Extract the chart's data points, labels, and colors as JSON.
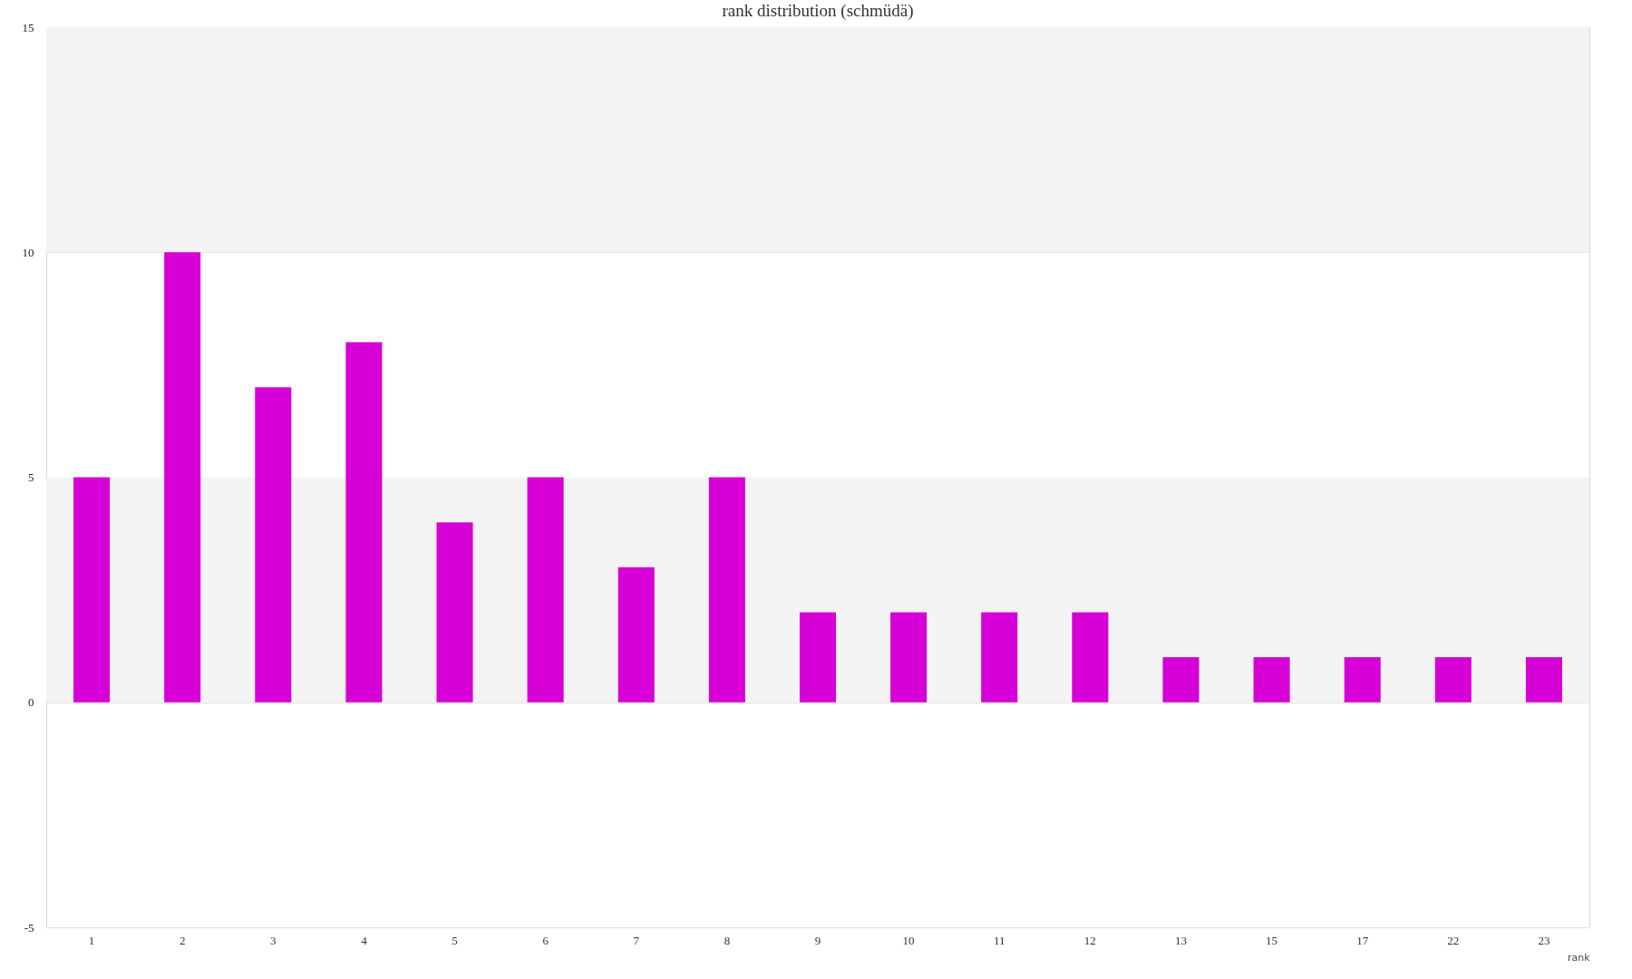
{
  "chart_data": {
    "type": "bar",
    "title": "rank distribution (schmüdä)",
    "xlabel": "rank",
    "categories": [
      "1",
      "2",
      "3",
      "4",
      "5",
      "6",
      "7",
      "8",
      "9",
      "10",
      "11",
      "12",
      "13",
      "15",
      "17",
      "22",
      "23"
    ],
    "values": [
      5,
      10,
      7,
      8,
      4,
      5,
      3,
      5,
      2,
      2,
      2,
      2,
      1,
      1,
      1,
      1,
      1
    ],
    "color": "#d600d6",
    "ylim": [
      -5,
      15
    ],
    "yticks": [
      -5,
      0,
      5,
      10,
      15
    ],
    "grid": "y",
    "bands": [
      {
        "axis": "y",
        "from": 0,
        "to": 5,
        "color": "#f3f3f3"
      },
      {
        "axis": "y",
        "from": 10,
        "to": 15,
        "color": "#f3f3f3"
      }
    ]
  }
}
